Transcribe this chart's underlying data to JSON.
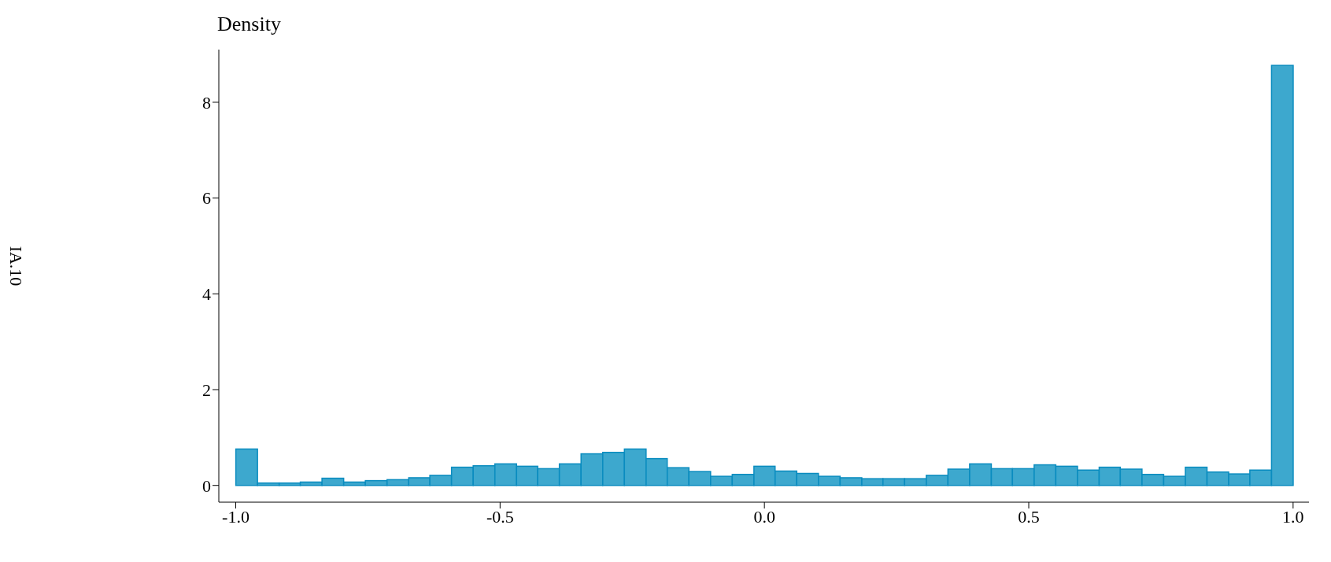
{
  "chart_data": {
    "type": "histogram",
    "title": "Density",
    "annotations": [
      "IA.10"
    ],
    "bins": [
      -1.0,
      -0.959,
      -0.918,
      -0.878,
      -0.837,
      -0.796,
      -0.755,
      -0.714,
      -0.673,
      -0.633,
      -0.592,
      -0.551,
      -0.51,
      -0.469,
      -0.429,
      -0.388,
      -0.347,
      -0.306,
      -0.265,
      -0.224,
      -0.184,
      -0.143,
      -0.102,
      -0.061,
      -0.02,
      0.02,
      0.061,
      0.102,
      0.143,
      0.184,
      0.224,
      0.265,
      0.306,
      0.347,
      0.388,
      0.429,
      0.469,
      0.51,
      0.551,
      0.592,
      0.633,
      0.673,
      0.714,
      0.755,
      0.796,
      0.837,
      0.878,
      0.918,
      0.959,
      1.0
    ],
    "values": [
      0.76,
      0.05,
      0.05,
      0.07,
      0.15,
      0.07,
      0.1,
      0.12,
      0.16,
      0.21,
      0.38,
      0.41,
      0.45,
      0.4,
      0.35,
      0.45,
      0.66,
      0.69,
      0.76,
      0.56,
      0.37,
      0.29,
      0.19,
      0.23,
      0.4,
      0.3,
      0.25,
      0.19,
      0.16,
      0.14,
      0.14,
      0.14,
      0.21,
      0.34,
      0.45,
      0.35,
      0.35,
      0.43,
      0.4,
      0.32,
      0.38,
      0.34,
      0.23,
      0.19,
      0.38,
      0.28,
      0.24,
      0.32,
      8.77
    ],
    "color": "#33a3cb",
    "xlim": [
      -1.032,
      1.03
    ],
    "ylim": [
      -0.35,
      9.1
    ],
    "xticks": [
      {
        "value": -1.0,
        "label": "-1.0"
      },
      {
        "value": -0.5,
        "label": "-0.5"
      },
      {
        "value": 0.0,
        "label": "0.0"
      },
      {
        "value": 0.5,
        "label": "0.5"
      },
      {
        "value": 1.0,
        "label": "1.0"
      }
    ],
    "yticks": [
      0,
      2,
      4,
      6,
      8
    ],
    "grid": false,
    "legend": false
  }
}
